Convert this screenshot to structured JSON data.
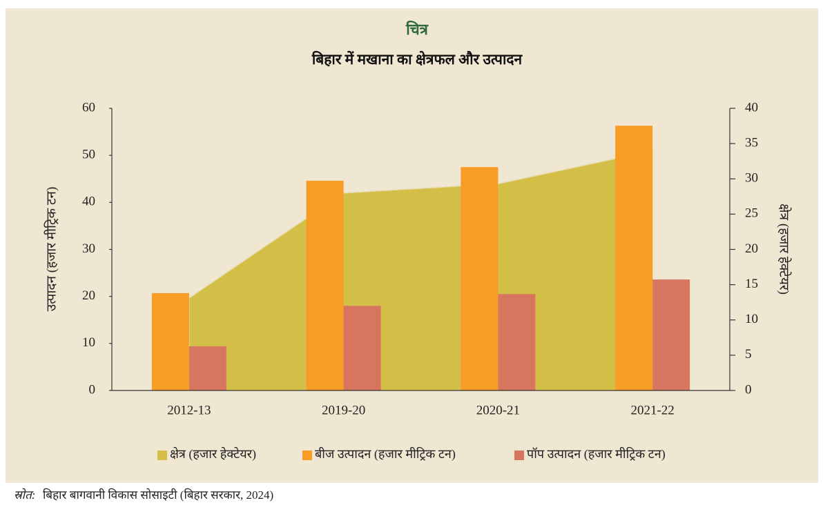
{
  "chart_data": {
    "type": "bar",
    "title": "चित्र",
    "subtitle": "बिहार में मखाना का क्षेत्रफल और उत्पादन",
    "y_label": "उत्पादन (हजार मीट्रिक टन)",
    "y2_label": "क्षेत्र (हजार हेक्टेयर)",
    "categories": [
      "2012-13",
      "2019-20",
      "2020-21",
      "2021-22"
    ],
    "series": [
      {
        "name": "क्षेत्र (हजार हेक्टेयर)",
        "type": "area",
        "axis": "y2",
        "color": "#d3be48",
        "values": [
          13.1,
          28.0,
          29.3,
          34.0
        ]
      },
      {
        "name": "बीज उत्पादन (हजार मीट्रिक टन)",
        "type": "bar",
        "color": "#f89c28",
        "values": [
          20.7,
          44.6,
          47.5,
          56.3
        ]
      },
      {
        "name": "पॉप उत्पादन (हजार मीट्रिक टन)",
        "type": "bar",
        "color": "#d8755f",
        "values": [
          9.4,
          18.0,
          20.5,
          23.6
        ]
      }
    ],
    "ylim": [
      0,
      60
    ],
    "yticks": [
      0,
      10,
      20,
      30,
      40,
      50,
      60
    ],
    "y2lim": [
      0,
      40
    ],
    "y2ticks": [
      0,
      5,
      10,
      15,
      20,
      25,
      30,
      35,
      40
    ],
    "legend": "bottom",
    "source_label": "स्रोत:",
    "source_text": "बिहार बागवानी विकास सोसाइटी (बिहार सरकार, 2024)"
  }
}
